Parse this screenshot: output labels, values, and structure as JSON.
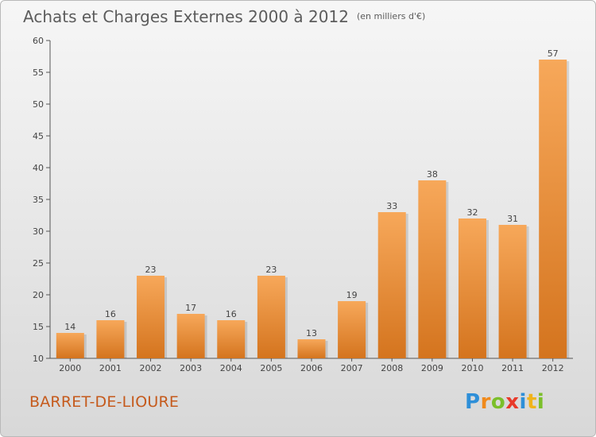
{
  "header": {
    "title": "Achats et Charges Externes 2000 à 2012",
    "unit": "(en milliers d'€)"
  },
  "footer": {
    "commune": "BARRET-DE-LIOURE",
    "logo_letters": [
      "P",
      "r",
      "o",
      "x",
      "i",
      "t",
      "i"
    ],
    "logo_colors": [
      "#2e8fd8",
      "#f08a1c",
      "#7bbf2a",
      "#e83a2a",
      "#2e8fd8",
      "#f0b41c",
      "#7bbf2a"
    ]
  },
  "colors": {
    "bar_top": "#f7a85a",
    "bar_bottom": "#d4741e",
    "axis": "#555555",
    "title": "#5c5c5c",
    "commune": "#c55a1c"
  },
  "chart_data": {
    "type": "bar",
    "title": "Achats et Charges Externes 2000 à 2012",
    "subtitle": "(en milliers d'€)",
    "categories": [
      "2000",
      "2001",
      "2002",
      "2003",
      "2004",
      "2005",
      "2006",
      "2007",
      "2008",
      "2009",
      "2010",
      "2011",
      "2012"
    ],
    "values": [
      14,
      16,
      23,
      17,
      16,
      23,
      13,
      19,
      33,
      38,
      32,
      31,
      57
    ],
    "ylim": [
      10,
      60
    ],
    "yticks": [
      10,
      15,
      20,
      25,
      30,
      35,
      40,
      45,
      50,
      55,
      60
    ],
    "grid": false,
    "legend": "none"
  }
}
